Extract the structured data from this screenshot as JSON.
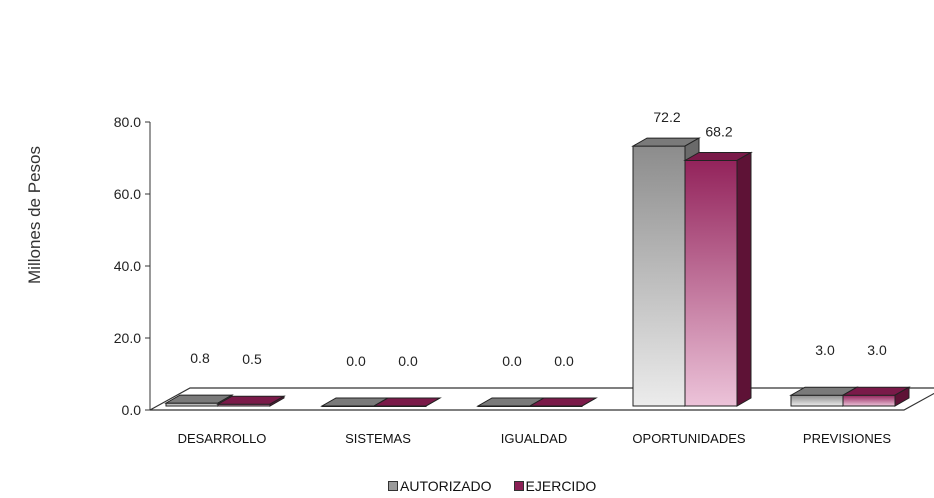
{
  "chart_data": {
    "type": "bar",
    "ylabel": "Millones de Pesos",
    "ylim": [
      0,
      80
    ],
    "yticks": [
      "0.0",
      "20.0",
      "40.0",
      "60.0",
      "80.0"
    ],
    "categories": [
      "DESARROLLO",
      "SISTEMAS",
      "IGUALDAD",
      "OPORTUNIDADES",
      "PREVISIONES"
    ],
    "series": [
      {
        "name": "AUTORIZADO",
        "values": [
          0.8,
          0.0,
          0.0,
          72.2,
          3.0
        ],
        "labels": [
          "0.8",
          "0.0",
          "0.0",
          "72.2",
          "3.0"
        ],
        "color": "#8a8a8a"
      },
      {
        "name": "EJERCIDO",
        "values": [
          0.5,
          0.0,
          0.0,
          68.2,
          3.0
        ],
        "labels": [
          "0.5",
          "0.0",
          "0.0",
          "68.2",
          "3.0"
        ],
        "color": "#8b2055"
      }
    ],
    "legend_position": "bottom",
    "grid": false,
    "style": "3d"
  }
}
